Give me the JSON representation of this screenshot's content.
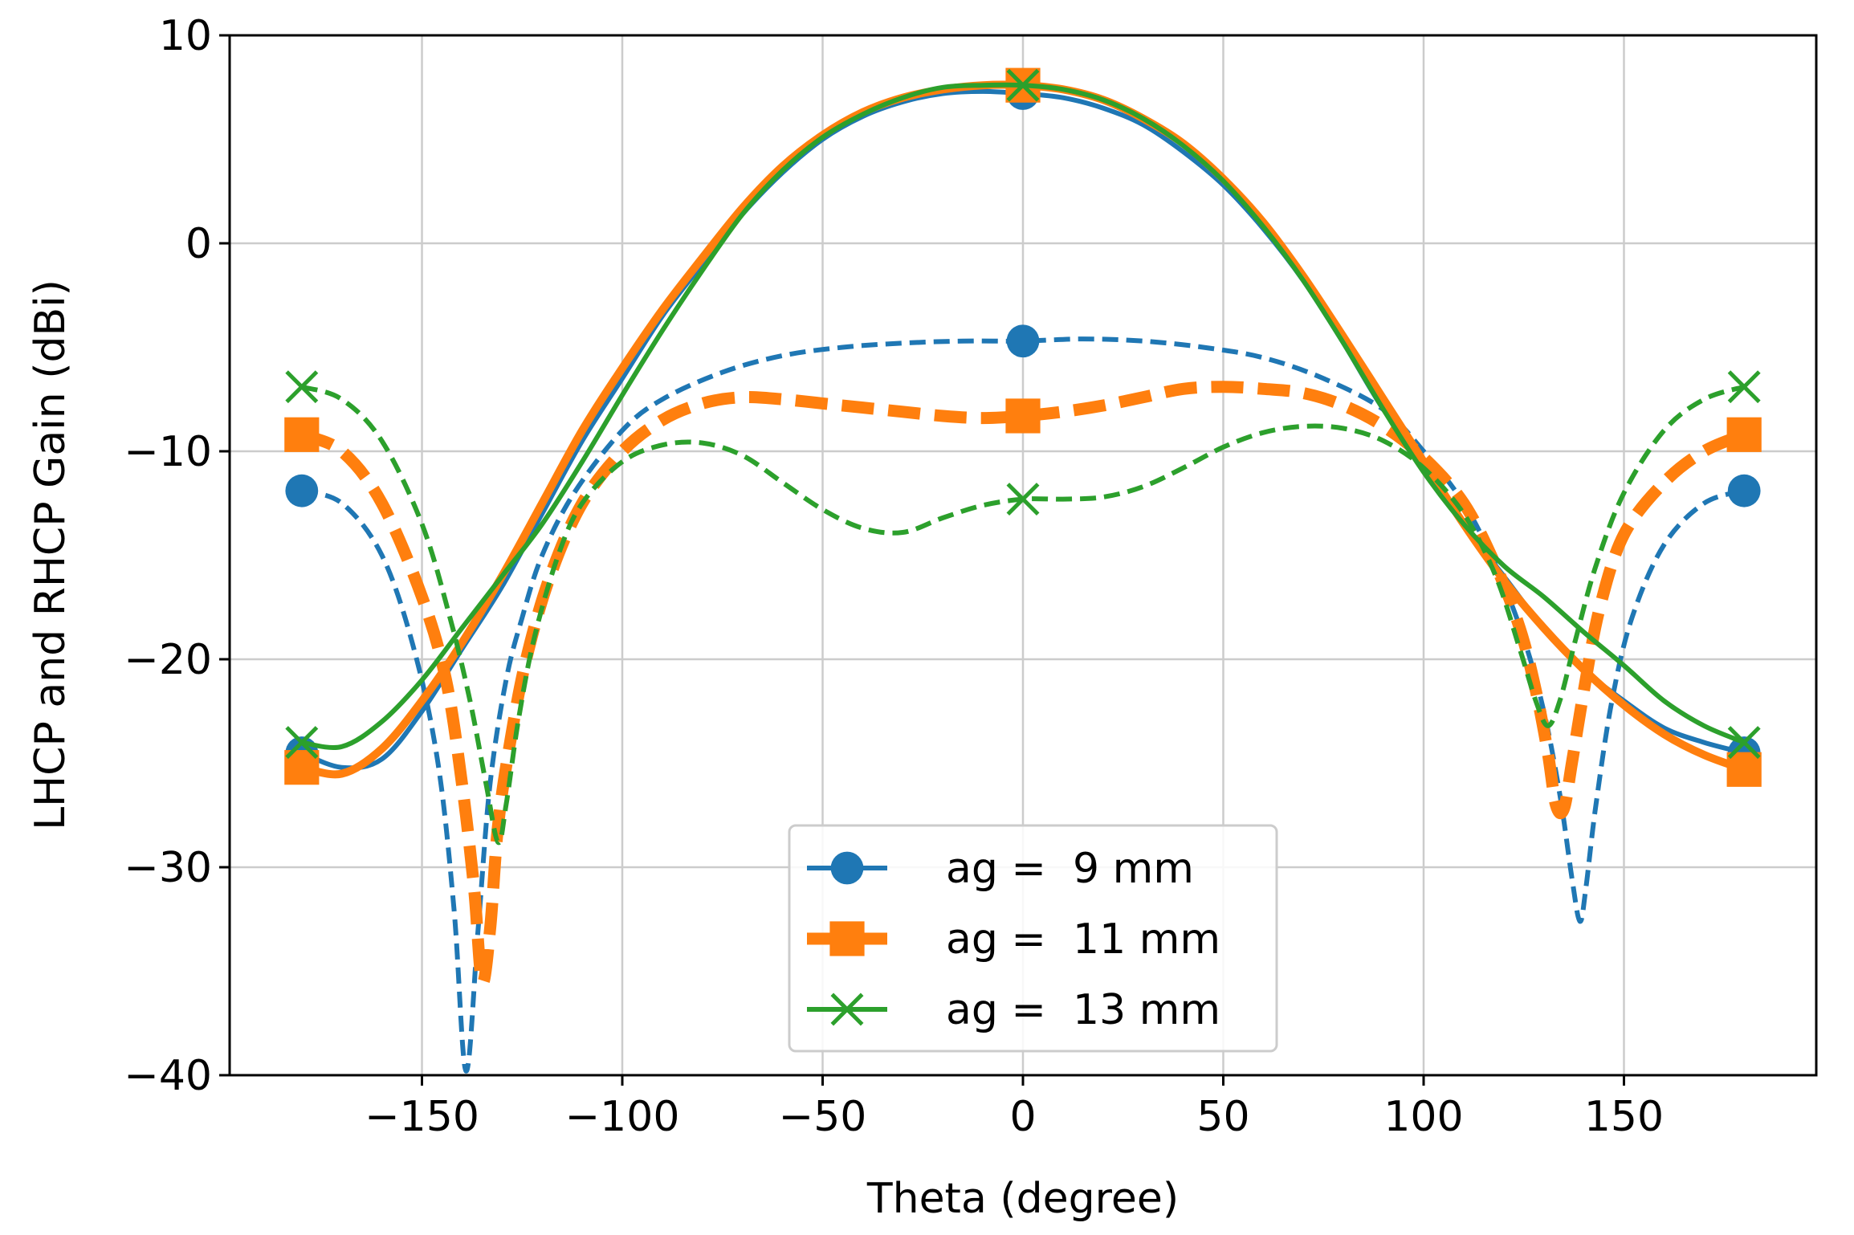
{
  "chart_data": {
    "type": "line",
    "title": "",
    "xlabel": "Theta (degree)",
    "ylabel": "LHCP and RHCP Gain (dBi)",
    "xlim": [
      -198,
      198
    ],
    "ylim": [
      -40,
      10
    ],
    "xticks": [
      -150,
      -100,
      -50,
      0,
      50,
      100,
      150
    ],
    "yticks": [
      -40,
      -30,
      -20,
      -10,
      0,
      10
    ],
    "xtick_labels": [
      "−150",
      "−100",
      "−50",
      "0",
      "50",
      "100",
      "150"
    ],
    "ytick_labels": [
      "−40",
      "−30",
      "−20",
      "−10",
      "0",
      "10"
    ],
    "grid": true,
    "legend": {
      "placement": "lower-center"
    },
    "series": [
      {
        "name": "ag =  9 mm",
        "color": "#1f77b4",
        "marker": "circle",
        "width": "normal",
        "co_pol": {
          "style": "solid",
          "x": [
            -180,
            -170,
            -160,
            -150,
            -140,
            -130,
            -120,
            -110,
            -100,
            -90,
            -80,
            -70,
            -60,
            -50,
            -40,
            -30,
            -20,
            -10,
            0,
            10,
            20,
            30,
            40,
            50,
            60,
            70,
            80,
            90,
            100,
            110,
            120,
            130,
            140,
            150,
            160,
            170,
            180
          ],
          "y": [
            -24.5,
            -25.2,
            -24.8,
            -22.5,
            -19.5,
            -16.5,
            -13,
            -9.5,
            -6.5,
            -3.5,
            -1,
            1.4,
            3.4,
            5,
            6.1,
            6.8,
            7.2,
            7.3,
            7.2,
            7,
            6.5,
            5.7,
            4.4,
            2.8,
            0.7,
            -1.8,
            -4.8,
            -8,
            -10.5,
            -13.5,
            -16,
            -18.5,
            -20.5,
            -22,
            -23.3,
            -24,
            -24.5
          ],
          "markers_x": [
            -180,
            0,
            180
          ],
          "markers_y": [
            -24.5,
            7.2,
            -24.5
          ]
        },
        "cross_pol": {
          "style": "dashed",
          "x": [
            -180,
            -170,
            -160,
            -152,
            -146,
            -142,
            -139,
            -136,
            -133,
            -129,
            -125,
            -120,
            -112,
            -100,
            -90,
            -75,
            -60,
            -45,
            -30,
            -15,
            0,
            15,
            30,
            45,
            60,
            75,
            90,
            100,
            110,
            118,
            125,
            130,
            134,
            137,
            139,
            140.5,
            143,
            147,
            152,
            160,
            170,
            180
          ],
          "y": [
            -11.9,
            -12.5,
            -15,
            -19.5,
            -25,
            -32,
            -39.8,
            -33,
            -26,
            -21,
            -18,
            -15,
            -12,
            -9,
            -7.5,
            -6.2,
            -5.4,
            -5,
            -4.8,
            -4.7,
            -4.7,
            -4.6,
            -4.7,
            -5,
            -5.5,
            -6.5,
            -8,
            -10,
            -12.5,
            -15.5,
            -19,
            -22.5,
            -26.5,
            -30.5,
            -32.6,
            -31,
            -27,
            -22,
            -18,
            -14.5,
            -12.5,
            -11.9
          ],
          "markers_x": [
            -180,
            0,
            180
          ],
          "markers_y": [
            -11.9,
            -4.7,
            -11.9
          ]
        }
      },
      {
        "name": "ag =  11 mm",
        "color": "#ff7f0e",
        "marker": "square",
        "width": "thick",
        "co_pol": {
          "style": "solid",
          "x": [
            -180,
            -170,
            -160,
            -150,
            -140,
            -130,
            -120,
            -110,
            -100,
            -90,
            -80,
            -70,
            -60,
            -50,
            -40,
            -30,
            -20,
            -10,
            0,
            10,
            20,
            30,
            40,
            50,
            60,
            70,
            80,
            90,
            100,
            110,
            120,
            130,
            140,
            150,
            160,
            170,
            180
          ],
          "y": [
            -25.2,
            -25.5,
            -24.3,
            -22,
            -19.2,
            -16,
            -12.5,
            -9,
            -6,
            -3.2,
            -0.7,
            1.7,
            3.7,
            5.2,
            6.3,
            7,
            7.4,
            7.6,
            7.6,
            7.4,
            6.9,
            6,
            4.8,
            3.1,
            1,
            -1.6,
            -4.5,
            -7.5,
            -10.5,
            -13.5,
            -16.2,
            -18.5,
            -20.5,
            -22.2,
            -23.6,
            -24.6,
            -25.3
          ],
          "markers_x": [
            -180,
            0,
            180
          ],
          "markers_y": [
            -25.2,
            7.6,
            -25.3
          ]
        },
        "cross_pol": {
          "style": "dashed",
          "x": [
            -180,
            -170,
            -160,
            -150,
            -144,
            -140,
            -137,
            -135,
            -133,
            -131,
            -128,
            -124,
            -118,
            -110,
            -100,
            -90,
            -80,
            -70,
            -60,
            -50,
            -40,
            -30,
            -20,
            -10,
            0,
            10,
            20,
            30,
            40,
            50,
            60,
            70,
            80,
            90,
            100,
            110,
            118,
            124,
            128,
            131,
            133,
            135,
            137,
            140,
            144,
            150,
            160,
            170,
            180
          ],
          "y": [
            -9.2,
            -10,
            -12.5,
            -17,
            -21,
            -26,
            -31,
            -35.5,
            -33,
            -28,
            -24,
            -20,
            -16,
            -12.5,
            -10,
            -8.5,
            -7.7,
            -7.4,
            -7.5,
            -7.7,
            -7.9,
            -8.1,
            -8.3,
            -8.4,
            -8.3,
            -8.1,
            -7.8,
            -7.4,
            -7,
            -6.9,
            -7,
            -7.2,
            -7.8,
            -8.8,
            -10.3,
            -12.5,
            -15.5,
            -18.5,
            -21.5,
            -24.5,
            -27,
            -27.2,
            -25,
            -21.5,
            -17.5,
            -14,
            -11.5,
            -10,
            -9.2
          ],
          "markers_x": [
            -180,
            0,
            180
          ],
          "markers_y": [
            -9.2,
            -8.3,
            -9.2
          ]
        }
      },
      {
        "name": "ag =  13 mm",
        "color": "#2ca02c",
        "marker": "x",
        "width": "normal",
        "co_pol": {
          "style": "solid",
          "x": [
            -180,
            -170,
            -160,
            -150,
            -140,
            -130,
            -120,
            -110,
            -100,
            -90,
            -80,
            -70,
            -60,
            -50,
            -40,
            -30,
            -20,
            -10,
            0,
            10,
            20,
            30,
            40,
            50,
            60,
            70,
            80,
            90,
            100,
            110,
            120,
            130,
            140,
            150,
            160,
            170,
            180
          ],
          "y": [
            -24,
            -24.2,
            -23,
            -21,
            -18.5,
            -16,
            -13.5,
            -10.5,
            -7.3,
            -4.2,
            -1.3,
            1.4,
            3.5,
            5.1,
            6.2,
            7,
            7.5,
            7.6,
            7.6,
            7.4,
            6.9,
            6,
            4.7,
            3,
            0.8,
            -1.8,
            -4.8,
            -8,
            -11,
            -13.5,
            -15.5,
            -17,
            -18.7,
            -20.3,
            -22,
            -23.2,
            -24
          ],
          "markers_x": [
            -180,
            0,
            180
          ],
          "markers_y": [
            -24,
            7.6,
            -24
          ]
        },
        "cross_pol": {
          "style": "dashed",
          "x": [
            -180,
            -170,
            -160,
            -150,
            -143,
            -138,
            -134,
            -131,
            -129,
            -126,
            -122,
            -116,
            -110,
            -100,
            -90,
            -80,
            -70,
            -60,
            -50,
            -40,
            -30,
            -20,
            -10,
            0,
            10,
            20,
            30,
            40,
            50,
            60,
            70,
            80,
            90,
            100,
            110,
            118,
            124,
            128,
            131,
            134,
            138,
            143,
            150,
            160,
            170,
            180
          ],
          "y": [
            -6.9,
            -7.5,
            -9.5,
            -13.5,
            -18,
            -22,
            -26,
            -28.8,
            -27,
            -23,
            -19,
            -15,
            -12.5,
            -10.5,
            -9.7,
            -9.6,
            -10.2,
            -11.5,
            -12.8,
            -13.7,
            -13.9,
            -13.2,
            -12.6,
            -12.3,
            -12.3,
            -12.2,
            -11.7,
            -10.8,
            -9.8,
            -9.1,
            -8.8,
            -8.9,
            -9.5,
            -10.8,
            -13,
            -16,
            -19.5,
            -22,
            -23.2,
            -22,
            -19,
            -15.5,
            -12,
            -9,
            -7.5,
            -6.9
          ],
          "markers_x": [
            -180,
            0,
            180
          ],
          "markers_y": [
            -6.9,
            -12.3,
            -6.9
          ]
        }
      }
    ]
  }
}
